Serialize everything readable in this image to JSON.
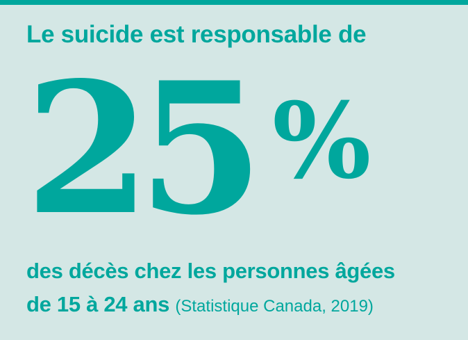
{
  "colors": {
    "accent": "#00a79d",
    "background": "#d4e7e5"
  },
  "heading": "Le suicide est responsable de",
  "stat": {
    "value": "25",
    "unit": "%"
  },
  "description": {
    "line1": "des décès chez les personnes âgées",
    "line2": "de 15 à 24 ans",
    "source": "(Statistique Canada, 2019)"
  }
}
